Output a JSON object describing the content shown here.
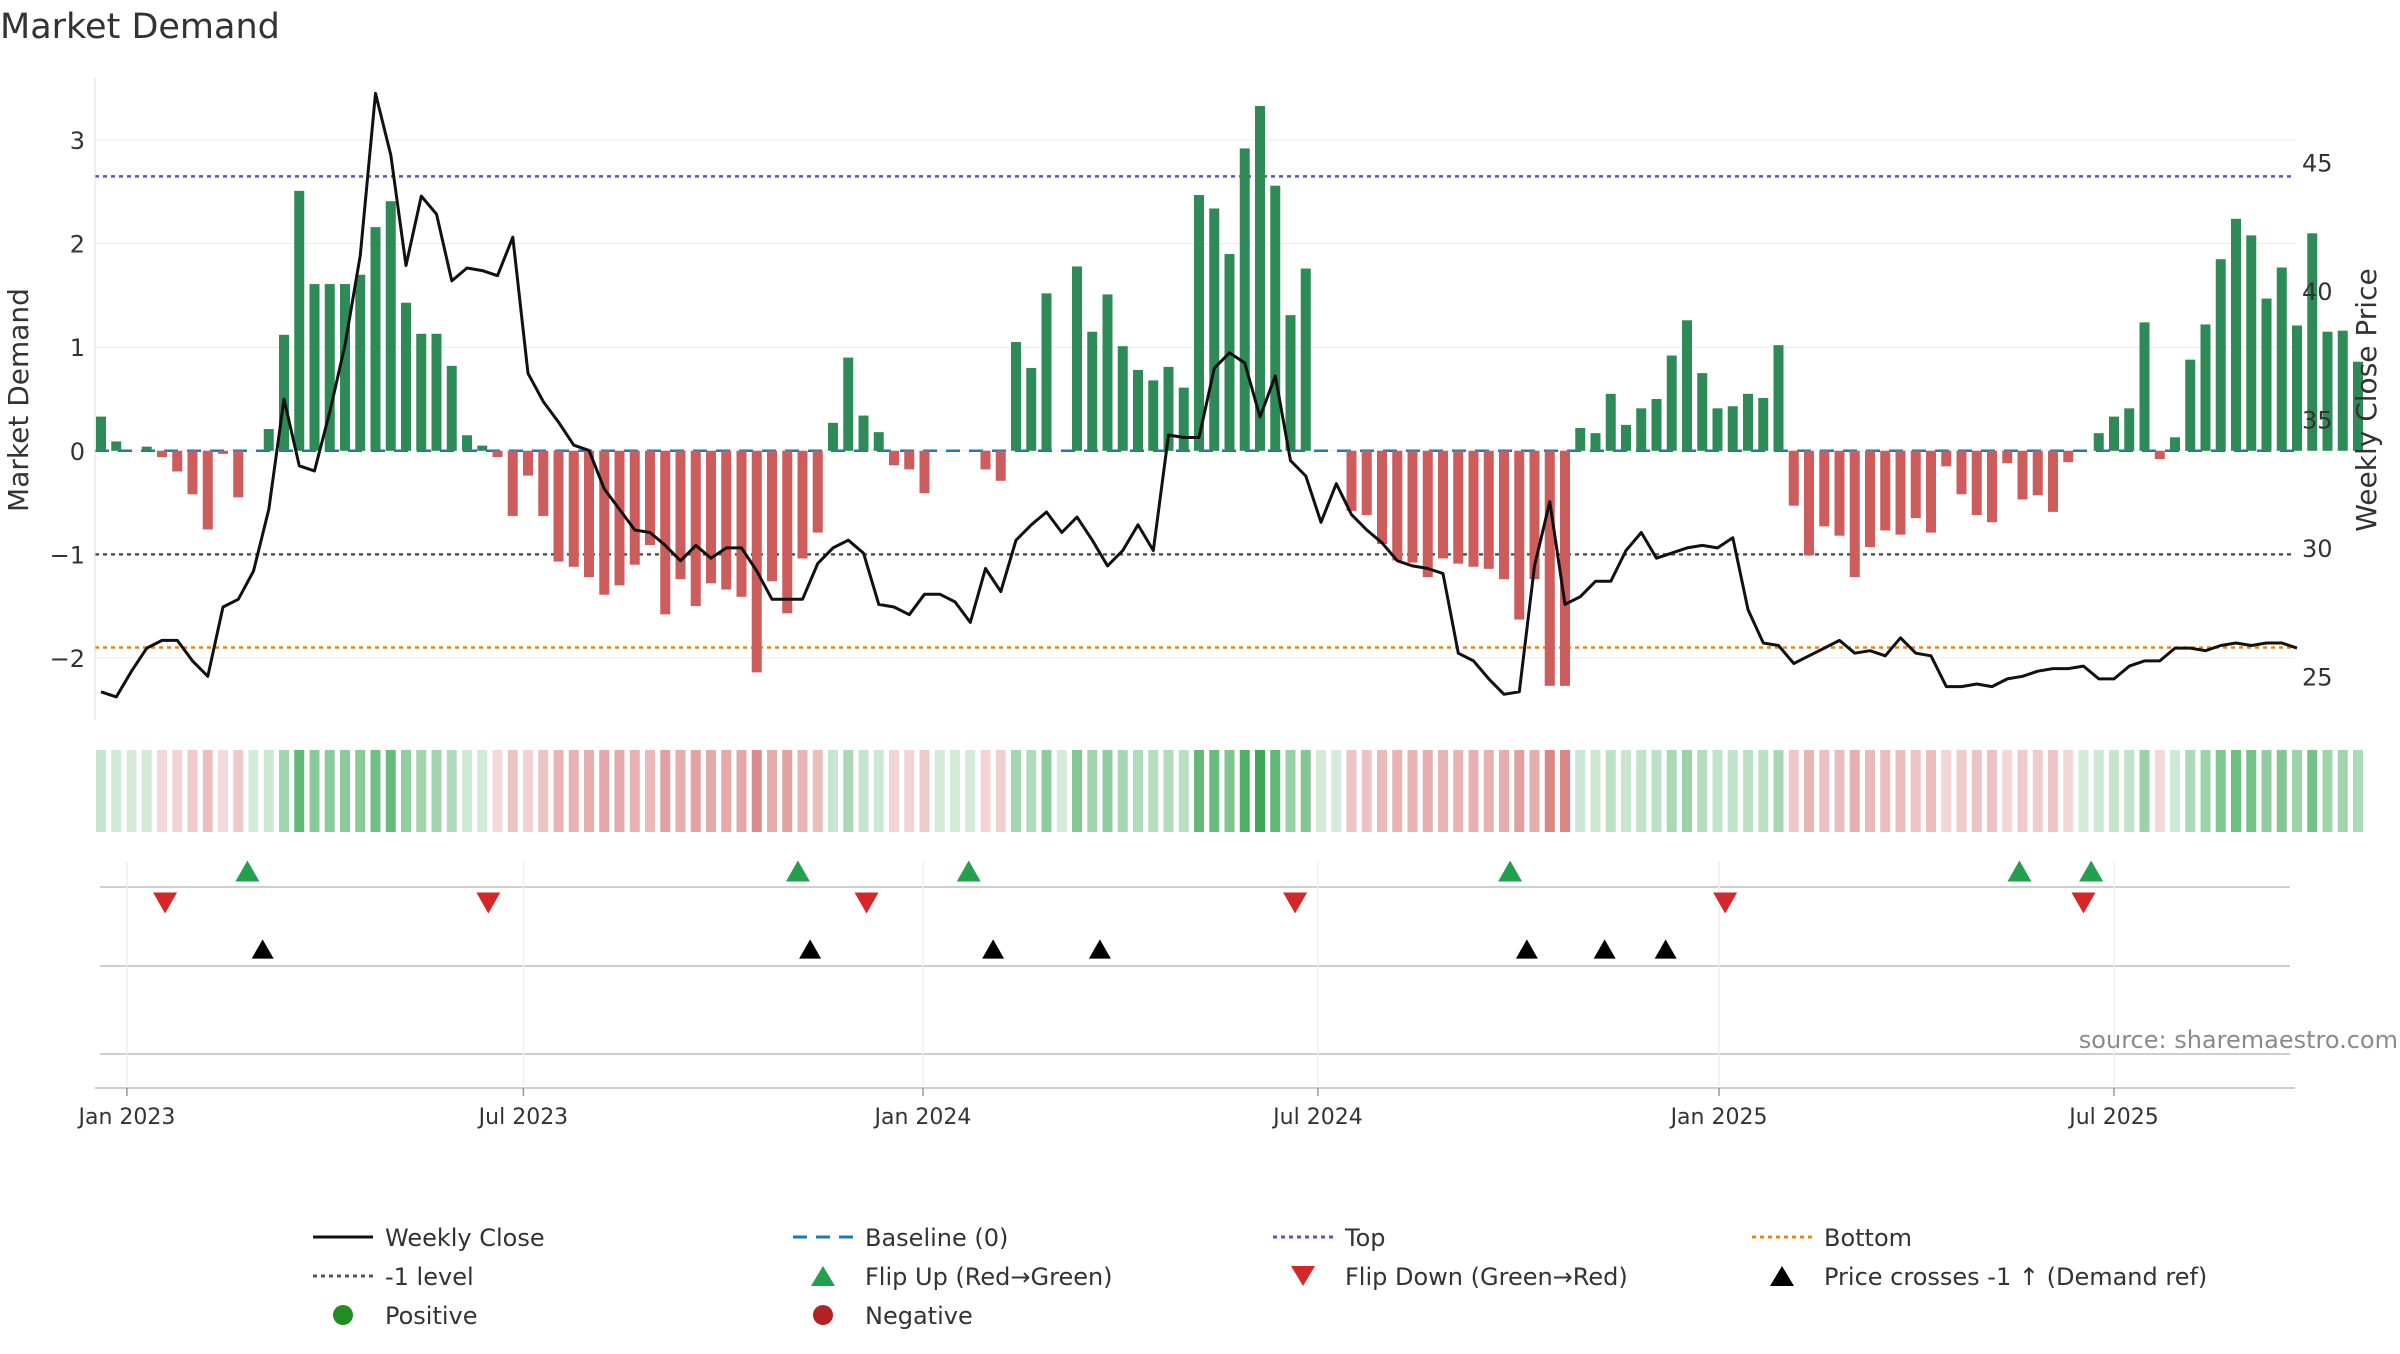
{
  "chart_data": {
    "type": "bar",
    "title": "Market Demand",
    "ylabel_left": "Market Demand",
    "ylabel_right": "Weekly Close Price",
    "source": "source: sharemaestro.com",
    "ylim_left": [
      -2.6,
      3.6
    ],
    "ylim_right": [
      23.3,
      48.3
    ],
    "yticks_left": [
      3,
      2,
      1,
      0,
      -1,
      -2
    ],
    "ytick_labels_left": [
      "3",
      "2",
      "1",
      "0",
      "−1",
      "−2"
    ],
    "yticks_right": [
      45,
      40,
      35,
      30,
      25
    ],
    "ytick_labels_right": [
      "45",
      "40",
      "35",
      "30",
      "25"
    ],
    "xtick_labels": [
      "Jan 2023",
      "Jul 2023",
      "Jan 2024",
      "Jul 2024",
      "Jan 2025",
      "Jul 2025"
    ],
    "xtick_weeks": [
      1.7,
      27.7,
      53.9,
      79.8,
      106.1,
      132
    ],
    "reference_lines": {
      "top": 2.65,
      "bottom": -1.9,
      "minus_one": -1.0,
      "baseline": 0
    },
    "demand": [
      0.33,
      0.09,
      0,
      0.04,
      -0.06,
      -0.2,
      -0.42,
      -0.76,
      -0.03,
      -0.45,
      0,
      0.21,
      1.12,
      2.51,
      1.61,
      1.61,
      1.61,
      1.7,
      2.16,
      2.41,
      1.43,
      1.13,
      1.13,
      0.82,
      0.15,
      0.05,
      -0.06,
      -0.63,
      -0.24,
      -0.63,
      -1.07,
      -1.12,
      -1.22,
      -1.39,
      -1.3,
      -1.1,
      -0.91,
      -1.58,
      -1.24,
      -1.5,
      -1.28,
      -1.34,
      -1.41,
      -2.14,
      -1.26,
      -1.57,
      -1.04,
      -0.79,
      0.27,
      0.9,
      0.34,
      0.18,
      -0.14,
      -0.18,
      -0.41,
      0,
      0,
      0,
      -0.18,
      -0.29,
      1.05,
      0.8,
      1.52,
      0,
      1.78,
      1.15,
      1.51,
      1.01,
      0.78,
      0.68,
      0.81,
      0.61,
      2.47,
      2.34,
      1.9,
      2.92,
      3.33,
      2.56,
      1.31,
      1.76,
      0,
      0,
      -0.58,
      -0.62,
      -0.9,
      -1.06,
      -1.08,
      -1.22,
      -1.04,
      -1.09,
      -1.12,
      -1.14,
      -1.24,
      -1.63,
      -1.24,
      -2.27,
      -2.27,
      0.22,
      0.17,
      0.55,
      0.25,
      0.41,
      0.5,
      0.92,
      1.26,
      0.75,
      0.41,
      0.43,
      0.55,
      0.51,
      1.02,
      -0.53,
      -1.01,
      -0.73,
      -0.82,
      -1.22,
      -0.93,
      -0.77,
      -0.81,
      -0.65,
      -0.79,
      -0.15,
      -0.42,
      -0.62,
      -0.69,
      -0.12,
      -0.47,
      -0.43,
      -0.59,
      -0.11,
      0,
      0.17,
      0.33,
      0.41,
      1.24,
      -0.08,
      0.13,
      0.88,
      1.22,
      1.85,
      2.24,
      2.08,
      1.47,
      1.77,
      1.21,
      2.1,
      1.15,
      1.16,
      0.86
    ],
    "price": [
      24.4,
      24.2,
      25.2,
      26.1,
      26.4,
      26.4,
      25.6,
      25,
      27.7,
      28,
      29.1,
      31.5,
      35.8,
      33.2,
      33,
      35.3,
      37.9,
      41.4,
      47.7,
      45.3,
      41,
      43.7,
      43,
      40.4,
      40.9,
      40.8,
      40.6,
      42.1,
      36.8,
      35.7,
      34.9,
      34,
      33.8,
      32.3,
      31.5,
      30.7,
      30.6,
      30.1,
      29.5,
      30.1,
      29.6,
      30,
      30,
      29.1,
      28,
      28,
      28,
      29.4,
      30,
      30.3,
      29.8,
      27.8,
      27.7,
      27.4,
      28.2,
      28.2,
      27.9,
      27.1,
      29.2,
      28.3,
      30.3,
      30.9,
      31.4,
      30.6,
      31.2,
      30.3,
      29.3,
      29.9,
      30.9,
      29.9,
      34.4,
      34.3,
      34.3,
      37,
      37.6,
      37.2,
      35.1,
      36.7,
      33.4,
      32.8,
      31,
      32.5,
      31.3,
      30.7,
      30.2,
      29.5,
      29.3,
      29.2,
      29,
      25.9,
      25.6,
      24.9,
      24.3,
      24.4,
      29.3,
      31.8,
      27.8,
      28.1,
      28.7,
      28.7,
      29.9,
      30.6,
      29.6,
      29.8,
      30,
      30.1,
      30,
      30.4,
      27.6,
      26.3,
      26.2,
      25.5,
      25.8,
      26.1,
      26.4,
      25.9,
      26,
      25.8,
      26.5,
      25.9,
      25.8,
      24.6,
      24.6,
      24.7,
      24.6,
      24.9,
      25,
      25.2,
      25.3,
      25.3,
      25.4,
      24.9,
      24.9,
      25.4,
      25.6,
      25.6,
      26.1,
      26.1,
      26,
      26.2,
      26.3,
      26.2,
      26.3,
      26.3,
      26.1
    ],
    "flip_up_weeks": [
      9.6,
      45.7,
      56.9,
      92.4,
      125.8,
      130.5
    ],
    "flip_down_weeks": [
      4.2,
      25.4,
      50.2,
      78.3,
      106.5,
      130
    ],
    "price_cross_weeks": [
      10.6,
      46.5,
      58.5,
      65.5,
      93.5,
      98.6,
      102.6
    ],
    "legend": [
      {
        "label": "Weekly Close",
        "kind": "line",
        "color": "#111111"
      },
      {
        "label": "Baseline (0)",
        "kind": "dashed",
        "color": "#1f77b4"
      },
      {
        "label": "Top",
        "kind": "dotted",
        "color": "#5555cc"
      },
      {
        "label": "Bottom",
        "kind": "dotted",
        "color": "#e08a1a"
      },
      {
        "label": "-1 level",
        "kind": "dotted",
        "color": "#555555"
      },
      {
        "label": "Flip Up (Red→Green)",
        "kind": "tri-up",
        "color": "#22a04b"
      },
      {
        "label": "Flip Down (Green→Red)",
        "kind": "tri-down",
        "color": "#d62728"
      },
      {
        "label": "Price crosses -1 ↑ (Demand ref)",
        "kind": "tri-up",
        "color": "#000000"
      },
      {
        "label": "Positive",
        "kind": "dot",
        "color": "#228b22"
      },
      {
        "label": "Negative",
        "kind": "dot",
        "color": "#b22222"
      }
    ],
    "colors": {
      "positive": "#2e8b57",
      "negative": "#cd5c5c",
      "strip_positive": "#3aa655",
      "strip_negative": "#cd5c5c"
    }
  }
}
